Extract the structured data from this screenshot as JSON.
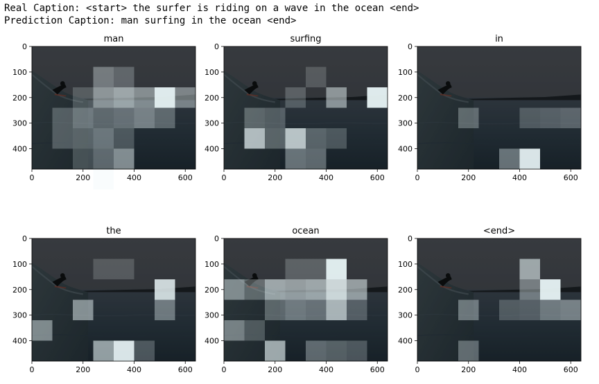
{
  "captions": {
    "real": "Real Caption: <start> the surfer is riding on a wave in the ocean <end>",
    "prediction": "Prediction Caption: man surfing in the ocean <end>"
  },
  "chart_data": [
    {
      "type": "heatmap",
      "title": "man",
      "xlim": [
        0,
        640
      ],
      "ylim": [
        480,
        0
      ],
      "x_ticks": [
        0,
        200,
        400,
        600
      ],
      "y_ticks": [
        0,
        100,
        200,
        300,
        400
      ],
      "cell_size": 80,
      "attention": [
        {
          "col": 3,
          "row": 1,
          "w": 0.28
        },
        {
          "col": 4,
          "row": 1,
          "w": 0.15
        },
        {
          "col": 2,
          "row": 2,
          "w": 0.1
        },
        {
          "col": 3,
          "row": 2,
          "w": 0.45
        },
        {
          "col": 4,
          "row": 2,
          "w": 0.55
        },
        {
          "col": 5,
          "row": 2,
          "w": 0.4
        },
        {
          "col": 6,
          "row": 2,
          "w": 1.0
        },
        {
          "col": 7,
          "row": 2,
          "w": 0.35
        },
        {
          "col": 1,
          "row": 3,
          "w": 0.15
        },
        {
          "col": 2,
          "row": 3,
          "w": 0.3
        },
        {
          "col": 3,
          "row": 3,
          "w": 0.2
        },
        {
          "col": 4,
          "row": 3,
          "w": 0.25
        },
        {
          "col": 5,
          "row": 3,
          "w": 0.35
        },
        {
          "col": 6,
          "row": 3,
          "w": 0.2
        },
        {
          "col": 1,
          "row": 4,
          "w": 0.15
        },
        {
          "col": 2,
          "row": 4,
          "w": 0.2
        },
        {
          "col": 3,
          "row": 4,
          "w": 0.3
        },
        {
          "col": 4,
          "row": 4,
          "w": 0.12
        },
        {
          "col": 2,
          "row": 5,
          "w": 0.1
        },
        {
          "col": 3,
          "row": 5,
          "w": 0.25
        },
        {
          "col": 4,
          "row": 5,
          "w": 0.45
        },
        {
          "col": 3,
          "row": 6,
          "w": 0.18
        }
      ]
    },
    {
      "type": "heatmap",
      "title": "surfing",
      "xlim": [
        0,
        640
      ],
      "ylim": [
        480,
        0
      ],
      "x_ticks": [
        0,
        200,
        400,
        600
      ],
      "y_ticks": [
        0,
        100,
        200,
        300,
        400
      ],
      "cell_size": 80,
      "attention": [
        {
          "col": 4,
          "row": 1,
          "w": 0.08
        },
        {
          "col": 5,
          "row": 2,
          "w": 0.45
        },
        {
          "col": 7,
          "row": 2,
          "w": 1.0
        },
        {
          "col": 3,
          "row": 2,
          "w": 0.12
        },
        {
          "col": 1,
          "row": 3,
          "w": 0.2
        },
        {
          "col": 2,
          "row": 3,
          "w": 0.15
        },
        {
          "col": 1,
          "row": 4,
          "w": 0.7
        },
        {
          "col": 2,
          "row": 4,
          "w": 0.2
        },
        {
          "col": 3,
          "row": 4,
          "w": 0.75
        },
        {
          "col": 4,
          "row": 4,
          "w": 0.2
        },
        {
          "col": 5,
          "row": 4,
          "w": 0.12
        },
        {
          "col": 3,
          "row": 5,
          "w": 0.3
        },
        {
          "col": 4,
          "row": 5,
          "w": 0.25
        }
      ]
    },
    {
      "type": "heatmap",
      "title": "in",
      "xlim": [
        0,
        640
      ],
      "ylim": [
        480,
        0
      ],
      "x_ticks": [
        0,
        200,
        400,
        600
      ],
      "y_ticks": [
        0,
        100,
        200,
        300,
        400
      ],
      "cell_size": 80,
      "attention": [
        {
          "col": 2,
          "row": 3,
          "w": 0.22
        },
        {
          "col": 5,
          "row": 3,
          "w": 0.12
        },
        {
          "col": 6,
          "row": 3,
          "w": 0.15
        },
        {
          "col": 7,
          "row": 3,
          "w": 0.18
        },
        {
          "col": 4,
          "row": 5,
          "w": 0.3
        },
        {
          "col": 5,
          "row": 5,
          "w": 0.95
        }
      ]
    },
    {
      "type": "heatmap",
      "title": "the",
      "xlim": [
        0,
        640
      ],
      "ylim": [
        480,
        0
      ],
      "x_ticks": [
        0,
        200,
        400,
        600
      ],
      "y_ticks": [
        0,
        100,
        200,
        300,
        400
      ],
      "cell_size": 80,
      "attention": [
        {
          "col": 3,
          "row": 1,
          "w": 0.08
        },
        {
          "col": 4,
          "row": 1,
          "w": 0.08
        },
        {
          "col": 6,
          "row": 2,
          "w": 0.85
        },
        {
          "col": 6,
          "row": 3,
          "w": 0.3
        },
        {
          "col": 2,
          "row": 3,
          "w": 0.45
        },
        {
          "col": 0,
          "row": 4,
          "w": 0.4
        },
        {
          "col": 3,
          "row": 5,
          "w": 0.55
        },
        {
          "col": 4,
          "row": 5,
          "w": 0.95
        },
        {
          "col": 5,
          "row": 5,
          "w": 0.15
        }
      ]
    },
    {
      "type": "heatmap",
      "title": "ocean",
      "xlim": [
        0,
        640
      ],
      "ylim": [
        480,
        0
      ],
      "x_ticks": [
        0,
        200,
        400,
        600
      ],
      "y_ticks": [
        0,
        100,
        200,
        300,
        400
      ],
      "cell_size": 80,
      "attention": [
        {
          "col": 3,
          "row": 1,
          "w": 0.12
        },
        {
          "col": 4,
          "row": 1,
          "w": 0.12
        },
        {
          "col": 5,
          "row": 1,
          "w": 1.0
        },
        {
          "col": 0,
          "row": 2,
          "w": 0.4
        },
        {
          "col": 1,
          "row": 2,
          "w": 0.2
        },
        {
          "col": 2,
          "row": 2,
          "w": 0.55
        },
        {
          "col": 3,
          "row": 2,
          "w": 0.5
        },
        {
          "col": 4,
          "row": 2,
          "w": 0.55
        },
        {
          "col": 5,
          "row": 2,
          "w": 0.85
        },
        {
          "col": 6,
          "row": 2,
          "w": 0.5
        },
        {
          "col": 2,
          "row": 3,
          "w": 0.2
        },
        {
          "col": 3,
          "row": 3,
          "w": 0.3
        },
        {
          "col": 4,
          "row": 3,
          "w": 0.25
        },
        {
          "col": 5,
          "row": 3,
          "w": 0.65
        },
        {
          "col": 6,
          "row": 3,
          "w": 0.15
        },
        {
          "col": 0,
          "row": 4,
          "w": 0.35
        },
        {
          "col": 1,
          "row": 4,
          "w": 0.12
        },
        {
          "col": 2,
          "row": 5,
          "w": 0.6
        },
        {
          "col": 4,
          "row": 5,
          "w": 0.25
        },
        {
          "col": 5,
          "row": 5,
          "w": 0.2
        },
        {
          "col": 6,
          "row": 5,
          "w": 0.15
        }
      ]
    },
    {
      "type": "heatmap",
      "title": "<end>",
      "xlim": [
        0,
        640
      ],
      "ylim": [
        480,
        0
      ],
      "x_ticks": [
        0,
        200,
        400,
        600
      ],
      "y_ticks": [
        0,
        100,
        200,
        300,
        400
      ],
      "cell_size": 80,
      "attention": [
        {
          "col": 5,
          "row": 1,
          "w": 0.55
        },
        {
          "col": 5,
          "row": 2,
          "w": 0.3
        },
        {
          "col": 6,
          "row": 2,
          "w": 1.0
        },
        {
          "col": 2,
          "row": 3,
          "w": 0.3
        },
        {
          "col": 4,
          "row": 3,
          "w": 0.12
        },
        {
          "col": 5,
          "row": 3,
          "w": 0.15
        },
        {
          "col": 6,
          "row": 3,
          "w": 0.3
        },
        {
          "col": 7,
          "row": 3,
          "w": 0.35
        },
        {
          "col": 2,
          "row": 5,
          "w": 0.25
        }
      ]
    }
  ]
}
